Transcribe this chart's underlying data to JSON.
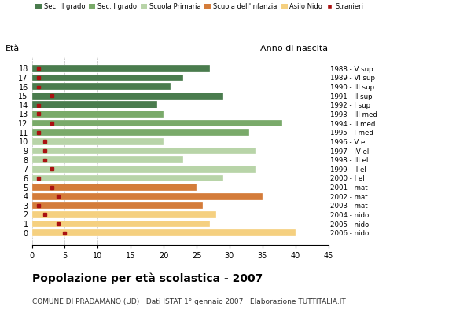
{
  "ages": [
    18,
    17,
    16,
    15,
    14,
    13,
    12,
    11,
    10,
    9,
    8,
    7,
    6,
    5,
    4,
    3,
    2,
    1,
    0
  ],
  "anni_nascita": [
    "1988 - V sup",
    "1989 - VI sup",
    "1990 - III sup",
    "1991 - II sup",
    "1992 - I sup",
    "1993 - III med",
    "1994 - II med",
    "1995 - I med",
    "1996 - V el",
    "1997 - IV el",
    "1998 - III el",
    "1999 - II el",
    "2000 - I el",
    "2001 - mat",
    "2002 - mat",
    "2003 - mat",
    "2004 - nido",
    "2005 - nido",
    "2006 - nido"
  ],
  "bar_values": [
    27,
    23,
    21,
    29,
    19,
    20,
    38,
    33,
    20,
    34,
    23,
    34,
    29,
    25,
    35,
    26,
    28,
    27,
    40
  ],
  "stranieri_positions": [
    1,
    1,
    1,
    3,
    1,
    1,
    3,
    1,
    2,
    2,
    2,
    3,
    1,
    3,
    4,
    1,
    2,
    4,
    5
  ],
  "bar_colors_by_age": {
    "18": "#4a7c4e",
    "17": "#4a7c4e",
    "16": "#4a7c4e",
    "15": "#4a7c4e",
    "14": "#4a7c4e",
    "13": "#7aaa6a",
    "12": "#7aaa6a",
    "11": "#7aaa6a",
    "10": "#b8d4a8",
    "9": "#b8d4a8",
    "8": "#b8d4a8",
    "7": "#b8d4a8",
    "6": "#b8d4a8",
    "5": "#d47c3a",
    "4": "#d47c3a",
    "3": "#d47c3a",
    "2": "#f5d080",
    "1": "#f5d080",
    "0": "#f5d080"
  },
  "stranieri_color": "#aa1111",
  "xlim": [
    0,
    45
  ],
  "xticks": [
    0,
    5,
    10,
    15,
    20,
    25,
    30,
    35,
    40,
    45
  ],
  "title": "Popolazione per età scolastica - 2007",
  "subtitle": "COMUNE DI PRADAMANO (UD) · Dati ISTAT 1° gennaio 2007 · Elaborazione TUTTITALIA.IT",
  "ylabel": "Età",
  "ylabel2": "Anno di nascita",
  "legend_labels": [
    "Sec. II grado",
    "Sec. I grado",
    "Scuola Primaria",
    "Scuola dell'Infanzia",
    "Asilo Nido",
    "Stranieri"
  ],
  "legend_colors": [
    "#4a7c4e",
    "#7aaa6a",
    "#b8d4a8",
    "#d47c3a",
    "#f5d080",
    "#aa1111"
  ],
  "bg_color": "#ffffff",
  "grid_color": "#aaaaaa",
  "bar_height": 0.75
}
